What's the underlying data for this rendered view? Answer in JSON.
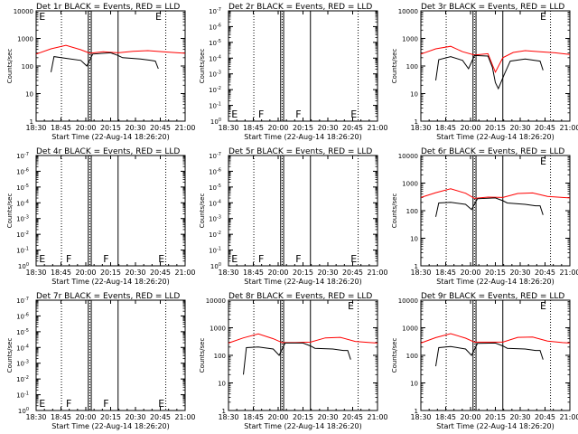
{
  "chart_data": [
    {
      "type": "line",
      "title": "Det 1r BLACK = Events, RED = LLD",
      "xlabel": "Start Time (22-Aug-14 18:26:20)",
      "ylabel": "Counts/sec",
      "x_ticks": [
        "18:30",
        "18:45",
        "20:00",
        "20:15",
        "20:30",
        "20:45",
        "21:00"
      ],
      "y_ticks": [
        "1",
        "10",
        "100",
        "1000",
        "10000"
      ],
      "ylim": [
        1,
        10000
      ],
      "scale": "log",
      "markers": [
        {
          "x": 0.02,
          "label": "E"
        },
        {
          "x": 0.8,
          "label": "E"
        }
      ],
      "dotted_x": [
        0.17,
        0.36,
        0.87
      ],
      "solid_x": [
        0.35,
        0.37,
        0.55
      ],
      "series": [
        {
          "color": "#ff0000",
          "x": [
            0,
            0.1,
            0.2,
            0.3,
            0.36,
            0.45,
            0.55,
            0.65,
            0.75,
            0.85,
            0.95,
            1.0
          ],
          "values": [
            270,
            420,
            560,
            390,
            290,
            330,
            300,
            340,
            360,
            330,
            300,
            290
          ]
        },
        {
          "color": "#000000",
          "x": [
            0.1,
            0.12,
            0.2,
            0.3,
            0.34,
            0.38,
            0.5,
            0.55,
            0.58,
            0.7,
            0.77,
            0.8,
            0.82
          ],
          "values": [
            60,
            220,
            190,
            160,
            100,
            270,
            300,
            240,
            200,
            180,
            160,
            150,
            80
          ]
        }
      ]
    },
    {
      "type": "line",
      "title": "Det 2r BLACK = Events, RED = LLD",
      "xlabel": "Start Time (22-Aug-14 18:26:20)",
      "ylabel": "Counts/sec",
      "x_ticks": [
        "18:30",
        "18:45",
        "20:00",
        "20:15",
        "20:30",
        "20:45",
        "21:00"
      ],
      "y_ticks": [
        "10^0",
        "10^-1",
        "10^-2",
        "10^-3",
        "10^-4",
        "10^-5",
        "10^-6",
        "10^-7"
      ],
      "markers": [
        {
          "x": 0.02,
          "label": "E"
        },
        {
          "x": 0.2,
          "label": "F"
        },
        {
          "x": 0.45,
          "label": "F"
        },
        {
          "x": 0.82,
          "label": "E"
        }
      ],
      "dotted_x": [
        0.17,
        0.36,
        0.87
      ],
      "solid_x": [
        0.35,
        0.37,
        0.55
      ],
      "series": []
    },
    {
      "type": "line",
      "title": "Det 3r BLACK = Events, RED = LLD",
      "xlabel": "Start Time (22-Aug-14 18:26:20)",
      "ylabel": "Counts/sec",
      "x_ticks": [
        "18:30",
        "18:45",
        "20:00",
        "20:15",
        "20:30",
        "20:45",
        "21:00"
      ],
      "y_ticks": [
        "1",
        "10",
        "100",
        "1000",
        "10000"
      ],
      "ylim": [
        1,
        10000
      ],
      "scale": "log",
      "markers": [
        {
          "x": 0.8,
          "label": "E"
        }
      ],
      "dotted_x": [
        0.17,
        0.36,
        0.87
      ],
      "solid_x": [
        0.35,
        0.37,
        0.55
      ],
      "series": [
        {
          "color": "#ff0000",
          "x": [
            0,
            0.1,
            0.2,
            0.28,
            0.36,
            0.45,
            0.5,
            0.55,
            0.62,
            0.7,
            0.8,
            0.9,
            1.0
          ],
          "values": [
            270,
            420,
            520,
            330,
            250,
            280,
            60,
            200,
            310,
            360,
            330,
            300,
            260
          ]
        },
        {
          "color": "#000000",
          "x": [
            0.1,
            0.12,
            0.2,
            0.28,
            0.32,
            0.36,
            0.45,
            0.48,
            0.5,
            0.52,
            0.56,
            0.6,
            0.7,
            0.8,
            0.82
          ],
          "values": [
            30,
            170,
            220,
            160,
            80,
            240,
            230,
            90,
            25,
            15,
            50,
            150,
            180,
            150,
            70
          ]
        }
      ]
    },
    {
      "type": "line",
      "title": "Det 4r BLACK = Events, RED = LLD",
      "xlabel": "Start Time (22-Aug-14 18:26:20)",
      "ylabel": "Counts/sec",
      "x_ticks": [
        "18:30",
        "18:45",
        "20:00",
        "20:15",
        "20:30",
        "20:45",
        "21:00"
      ],
      "y_ticks": [
        "10^0",
        "10^-1",
        "10^-2",
        "10^-3",
        "10^-4",
        "10^-5",
        "10^-6",
        "10^-7"
      ],
      "markers": [
        {
          "x": 0.02,
          "label": "E"
        },
        {
          "x": 0.2,
          "label": "F"
        },
        {
          "x": 0.45,
          "label": "F"
        },
        {
          "x": 0.82,
          "label": "E"
        }
      ],
      "dotted_x": [
        0.17,
        0.36,
        0.87
      ],
      "solid_x": [
        0.35,
        0.37,
        0.55
      ],
      "series": []
    },
    {
      "type": "line",
      "title": "Det 5r BLACK = Events, RED = LLD",
      "xlabel": "Start Time (22-Aug-14 18:26:20)",
      "ylabel": "Counts/sec",
      "x_ticks": [
        "18:30",
        "18:45",
        "20:00",
        "20:15",
        "20:30",
        "20:45",
        "21:00"
      ],
      "y_ticks": [
        "10^0",
        "10^-1",
        "10^-2",
        "10^-3",
        "10^-4",
        "10^-5",
        "10^-6",
        "10^-7"
      ],
      "markers": [
        {
          "x": 0.02,
          "label": "E"
        },
        {
          "x": 0.2,
          "label": "F"
        },
        {
          "x": 0.45,
          "label": "F"
        },
        {
          "x": 0.82,
          "label": "E"
        }
      ],
      "dotted_x": [
        0.17,
        0.36,
        0.87
      ],
      "solid_x": [
        0.35,
        0.37,
        0.55
      ],
      "series": []
    },
    {
      "type": "line",
      "title": "Det 6r BLACK = Events, RED = LLD",
      "xlabel": "Start Time (22-Aug-14 18:26:20)",
      "ylabel": "Counts/sec",
      "x_ticks": [
        "18:30",
        "18:45",
        "20:00",
        "20:15",
        "20:30",
        "20:45",
        "21:00"
      ],
      "y_ticks": [
        "1",
        "10",
        "100",
        "1000",
        "10000"
      ],
      "ylim": [
        1,
        10000
      ],
      "scale": "log",
      "markers": [
        {
          "x": 0.8,
          "label": "E"
        }
      ],
      "dotted_x": [
        0.17,
        0.36,
        0.87
      ],
      "solid_x": [
        0.35,
        0.37,
        0.55
      ],
      "series": [
        {
          "color": "#ff0000",
          "x": [
            0,
            0.1,
            0.2,
            0.3,
            0.36,
            0.45,
            0.55,
            0.65,
            0.75,
            0.85,
            0.95,
            1.0
          ],
          "values": [
            300,
            450,
            620,
            430,
            280,
            310,
            300,
            420,
            440,
            330,
            300,
            290
          ]
        },
        {
          "color": "#000000",
          "x": [
            0.1,
            0.12,
            0.2,
            0.3,
            0.34,
            0.38,
            0.5,
            0.55,
            0.58,
            0.7,
            0.77,
            0.8,
            0.82
          ],
          "values": [
            60,
            190,
            200,
            170,
            110,
            270,
            290,
            230,
            190,
            170,
            150,
            150,
            70
          ]
        }
      ]
    },
    {
      "type": "line",
      "title": "Det 7r BLACK = Events, RED = LLD",
      "xlabel": "Start Time (22-Aug-14 18:26:20)",
      "ylabel": "Counts/sec",
      "x_ticks": [
        "18:30",
        "18:45",
        "20:00",
        "20:15",
        "20:30",
        "20:45",
        "21:00"
      ],
      "y_ticks": [
        "10^0",
        "10^-1",
        "10^-2",
        "10^-3",
        "10^-4",
        "10^-5",
        "10^-6",
        "10^-7"
      ],
      "markers": [
        {
          "x": 0.02,
          "label": "E"
        },
        {
          "x": 0.2,
          "label": "F"
        },
        {
          "x": 0.45,
          "label": "F"
        },
        {
          "x": 0.82,
          "label": "E"
        }
      ],
      "dotted_x": [
        0.17,
        0.36,
        0.87
      ],
      "solid_x": [
        0.35,
        0.37,
        0.55
      ],
      "series": []
    },
    {
      "type": "line",
      "title": "Det 8r BLACK = Events, RED = LLD",
      "xlabel": "Start Time (22-Aug-14 18:26:20)",
      "ylabel": "Counts/sec",
      "x_ticks": [
        "18:30",
        "18:45",
        "20:00",
        "20:15",
        "20:30",
        "20:45",
        "21:00"
      ],
      "y_ticks": [
        "1",
        "10",
        "100",
        "1000",
        "10000"
      ],
      "ylim": [
        1,
        10000
      ],
      "scale": "log",
      "markers": [
        {
          "x": 0.8,
          "label": "E"
        }
      ],
      "dotted_x": [
        0.17,
        0.36,
        0.87
      ],
      "solid_x": [
        0.35,
        0.37,
        0.55
      ],
      "series": [
        {
          "color": "#ff0000",
          "x": [
            0,
            0.1,
            0.2,
            0.3,
            0.36,
            0.45,
            0.55,
            0.65,
            0.75,
            0.85,
            0.95,
            1.0
          ],
          "values": [
            280,
            430,
            600,
            400,
            290,
            290,
            300,
            430,
            450,
            320,
            290,
            280
          ]
        },
        {
          "color": "#000000",
          "x": [
            0.1,
            0.12,
            0.2,
            0.3,
            0.34,
            0.38,
            0.5,
            0.55,
            0.58,
            0.7,
            0.77,
            0.8,
            0.82
          ],
          "values": [
            20,
            190,
            200,
            170,
            100,
            280,
            280,
            220,
            180,
            170,
            150,
            150,
            70
          ]
        }
      ]
    },
    {
      "type": "line",
      "title": "Det 9r BLACK = Events, RED = LLD",
      "xlabel": "Start Time (22-Aug-14 18:26:20)",
      "ylabel": "Counts/sec",
      "x_ticks": [
        "18:30",
        "18:45",
        "20:00",
        "20:15",
        "20:30",
        "20:45",
        "21:00"
      ],
      "y_ticks": [
        "1",
        "10",
        "100",
        "1000",
        "10000"
      ],
      "ylim": [
        1,
        10000
      ],
      "scale": "log",
      "markers": [
        {
          "x": 0.8,
          "label": "E"
        }
      ],
      "dotted_x": [
        0.17,
        0.36,
        0.87
      ],
      "solid_x": [
        0.35,
        0.37,
        0.55
      ],
      "series": [
        {
          "color": "#ff0000",
          "x": [
            0,
            0.1,
            0.2,
            0.3,
            0.36,
            0.45,
            0.55,
            0.65,
            0.75,
            0.85,
            0.95,
            1.0
          ],
          "values": [
            280,
            440,
            610,
            420,
            300,
            300,
            300,
            450,
            460,
            330,
            290,
            280
          ]
        },
        {
          "color": "#000000",
          "x": [
            0.1,
            0.12,
            0.2,
            0.3,
            0.34,
            0.38,
            0.5,
            0.55,
            0.58,
            0.7,
            0.77,
            0.8,
            0.82
          ],
          "values": [
            40,
            190,
            210,
            170,
            100,
            270,
            280,
            220,
            180,
            170,
            150,
            150,
            70
          ]
        }
      ]
    }
  ]
}
